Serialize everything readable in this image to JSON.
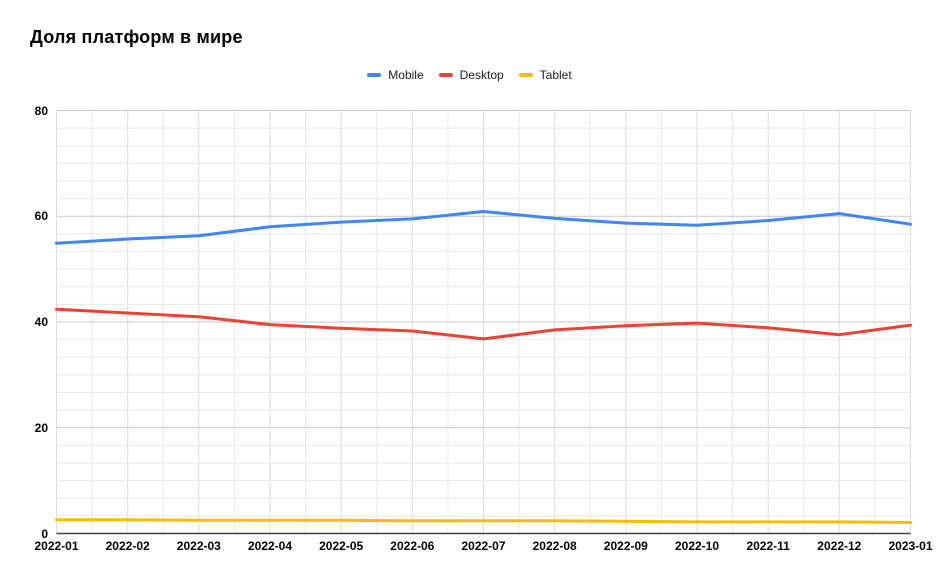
{
  "chart_data": {
    "type": "line",
    "title": "Доля платформ в мире",
    "categories": [
      "2022-01",
      "2022-02",
      "2022-03",
      "2022-04",
      "2022-05",
      "2022-06",
      "2022-07",
      "2022-08",
      "2022-09",
      "2022-10",
      "2022-11",
      "2022-12",
      "2023-01"
    ],
    "series": [
      {
        "name": "Mobile",
        "color": "#4285f4",
        "values": [
          54.9,
          55.7,
          56.3,
          58.0,
          58.9,
          59.5,
          60.9,
          59.6,
          58.7,
          58.3,
          59.2,
          60.5,
          58.5
        ]
      },
      {
        "name": "Desktop",
        "color": "#ea4335",
        "values": [
          42.4,
          41.7,
          41.0,
          39.5,
          38.8,
          38.3,
          36.8,
          38.5,
          39.3,
          39.8,
          38.9,
          37.6,
          39.4
        ]
      },
      {
        "name": "Tablet",
        "color": "#fbbc04",
        "values": [
          2.6,
          2.6,
          2.5,
          2.5,
          2.5,
          2.4,
          2.4,
          2.4,
          2.3,
          2.2,
          2.2,
          2.2,
          2.1
        ]
      }
    ],
    "ylim": [
      0,
      80
    ],
    "yticks": [
      0,
      20,
      40,
      60,
      80
    ],
    "xlabel": "",
    "ylabel": "",
    "legend_position": "top-center",
    "grid": {
      "on": true,
      "major_color": "#c9c9c9",
      "minor_color": "#e8e8e8",
      "vertical_month_color": "#dcdcdc",
      "vertical_half_color": "#e9e9e9",
      "axis_color": "#424242",
      "y_minor_per_major": 5,
      "x_minor_per_major": 1
    }
  }
}
